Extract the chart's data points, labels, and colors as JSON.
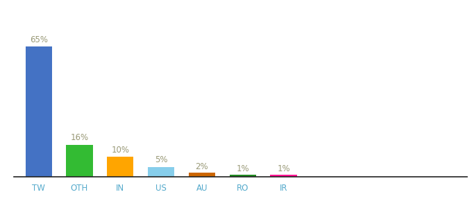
{
  "categories": [
    "TW",
    "OTH",
    "IN",
    "US",
    "AU",
    "RO",
    "IR"
  ],
  "values": [
    65,
    16,
    10,
    5,
    2,
    1,
    1
  ],
  "labels": [
    "65%",
    "16%",
    "10%",
    "5%",
    "2%",
    "1%",
    "1%"
  ],
  "bar_colors": [
    "#4472C4",
    "#33BB33",
    "#FFA500",
    "#87CEEB",
    "#CC6600",
    "#228B22",
    "#FF1493"
  ],
  "background_color": "#ffffff",
  "label_color": "#999977",
  "xlabel_color": "#55AACC",
  "label_fontsize": 8.5,
  "tick_fontsize": 8.5,
  "ylim": [
    0,
    80
  ],
  "bar_width": 0.65
}
